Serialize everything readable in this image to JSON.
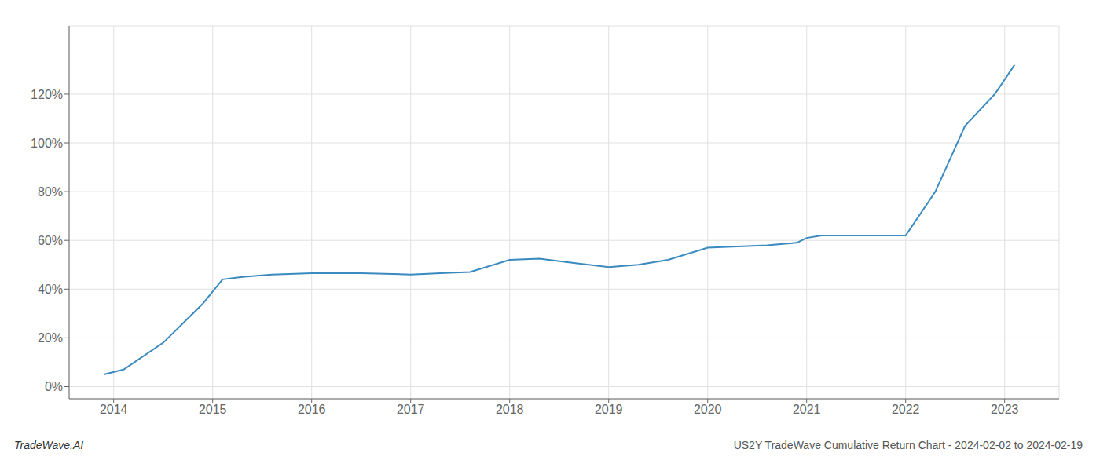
{
  "chart_data": {
    "type": "line",
    "x": [
      2013.9,
      2014.1,
      2014.5,
      2014.9,
      2015.1,
      2015.3,
      2015.6,
      2016.0,
      2016.5,
      2017.0,
      2017.3,
      2017.6,
      2018.0,
      2018.3,
      2018.6,
      2019.0,
      2019.3,
      2019.6,
      2020.0,
      2020.3,
      2020.6,
      2020.9,
      2021.0,
      2021.15,
      2021.3,
      2021.5,
      2022.0,
      2022.3,
      2022.6,
      2022.9,
      2023.1
    ],
    "values": [
      5,
      7,
      18,
      34,
      44,
      45,
      46,
      46.5,
      46.5,
      46,
      46.5,
      47,
      52,
      52.5,
      51,
      49,
      50,
      52,
      57,
      57.5,
      58,
      59,
      61,
      62,
      62,
      62,
      62,
      80,
      107,
      120,
      132
    ],
    "color": "#3a8abf",
    "xlim": [
      2013.55,
      2023.55
    ],
    "xticks": [
      2014,
      2015,
      2016,
      2017,
      2018,
      2019,
      2020,
      2021,
      2022,
      2023
    ],
    "ylim": [
      -5,
      148
    ],
    "yticks": [
      {
        "value": 0,
        "label": "0%"
      },
      {
        "value": 20,
        "label": "20%"
      },
      {
        "value": 40,
        "label": "40%"
      },
      {
        "value": 60,
        "label": "60%"
      },
      {
        "value": 80,
        "label": "80%"
      },
      {
        "value": 100,
        "label": "100%"
      },
      {
        "value": 120,
        "label": "120%"
      }
    ],
    "grid": true,
    "annotations": [
      "TradeWave.AI",
      "US2Y TradeWave Cumulative Return Chart - 2024-02-02 to 2024-02-19"
    ]
  }
}
